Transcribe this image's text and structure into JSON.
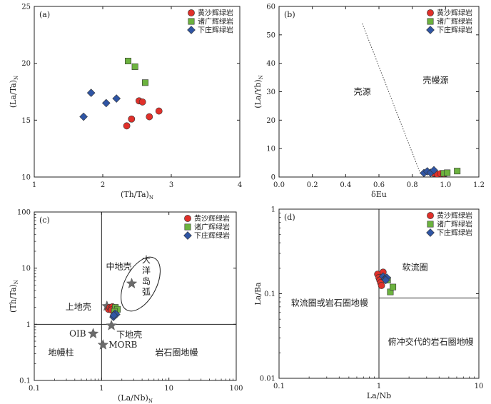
{
  "chart_data": [
    {
      "id": "a",
      "type": "scatter",
      "panel_label": "(a)",
      "xlabel": "(Th/Ta)N",
      "ylabel": "(La/Ta)N",
      "xlim": [
        1,
        4
      ],
      "ylim": [
        10,
        25
      ],
      "xticks": [
        1,
        2,
        3,
        4
      ],
      "yticks": [
        10,
        15,
        20,
        25
      ],
      "legend": "top-right",
      "series": [
        {
          "name": "黄沙辉绿岩",
          "marker": "circle",
          "color": "#e0302a",
          "points": [
            [
              2.35,
              14.5
            ],
            [
              2.42,
              15.1
            ],
            [
              2.53,
              16.7
            ],
            [
              2.58,
              16.6
            ],
            [
              2.68,
              15.3
            ],
            [
              2.82,
              15.8
            ]
          ]
        },
        {
          "name": "诸广辉绿岩",
          "marker": "square",
          "color": "#6cb33f",
          "points": [
            [
              2.37,
              20.2
            ],
            [
              2.47,
              19.7
            ],
            [
              2.62,
              18.3
            ]
          ]
        },
        {
          "name": "下庄辉绿岩",
          "marker": "diamond",
          "color": "#2f55a4",
          "points": [
            [
              1.72,
              15.3
            ],
            [
              1.83,
              17.4
            ],
            [
              2.05,
              16.5
            ],
            [
              2.2,
              16.9
            ]
          ]
        }
      ]
    },
    {
      "id": "b",
      "type": "scatter",
      "panel_label": "(b)",
      "xlabel": "δEu",
      "ylabel": "(La/Yb)N",
      "xlim": [
        0,
        1.2
      ],
      "ylim": [
        0,
        60
      ],
      "xticks": [
        0,
        0.2,
        0.4,
        0.6,
        0.8,
        1.0,
        1.2
      ],
      "xtick_labels": [
        "0.0",
        "0.2",
        "0.4",
        "0.6",
        "0.8",
        "1.0",
        "1.2"
      ],
      "yticks": [
        0,
        10,
        20,
        30,
        40,
        50,
        60
      ],
      "legend": "top-right",
      "boundary_line": {
        "style": "dotted",
        "points": [
          [
            0.5,
            54
          ],
          [
            0.85,
            1
          ]
        ]
      },
      "region_labels": [
        {
          "text": "壳源",
          "x": 0.5,
          "y": 29
        },
        {
          "text": "壳幔源",
          "x": 0.94,
          "y": 33
        }
      ],
      "series": [
        {
          "name": "黄沙辉绿岩",
          "marker": "circle",
          "color": "#e0302a",
          "points": [
            [
              0.93,
              1.3
            ],
            [
              0.95,
              1.0
            ],
            [
              0.97,
              1.2
            ],
            [
              0.99,
              1.1
            ]
          ]
        },
        {
          "name": "诸广辉绿岩",
          "marker": "square",
          "color": "#6cb33f",
          "points": [
            [
              0.99,
              1.3
            ],
            [
              1.01,
              1.5
            ],
            [
              1.07,
              2.1
            ]
          ]
        },
        {
          "name": "下庄辉绿岩",
          "marker": "diamond",
          "color": "#2f55a4",
          "points": [
            [
              0.87,
              1.4
            ],
            [
              0.89,
              2.0
            ],
            [
              0.91,
              1.5
            ],
            [
              0.93,
              2.4
            ]
          ]
        }
      ]
    },
    {
      "id": "c",
      "type": "scatter",
      "panel_label": "(c)",
      "xlabel": "(La/Nb)N",
      "ylabel": "(Th/Ta)N",
      "xscale": "log",
      "yscale": "log",
      "xlim": [
        0.1,
        100
      ],
      "ylim": [
        0.1,
        100
      ],
      "xticks": [
        0.1,
        1,
        10,
        100
      ],
      "xtick_labels": [
        "0.1",
        "1",
        "10",
        "100"
      ],
      "yticks": [
        0.1,
        1,
        10,
        100
      ],
      "ytick_labels": [
        "0.1",
        "1",
        "10",
        "100"
      ],
      "legend": "top-right",
      "reference_lines": {
        "x": 1,
        "y": 1
      },
      "reference_points": [
        {
          "name": "中地壳",
          "x": 2.8,
          "y": 5.3
        },
        {
          "name": "上地壳",
          "x": 1.2,
          "y": 2.1
        },
        {
          "name": "下地壳",
          "x": 1.4,
          "y": 0.95
        },
        {
          "name": "OIB",
          "x": 0.75,
          "y": 0.68
        },
        {
          "name": "MORB",
          "x": 1.05,
          "y": 0.43
        }
      ],
      "arc_field": {
        "label": "大洋岛弧",
        "center": [
          3.8,
          5.2
        ],
        "span_x": [
          1.8,
          8.0
        ],
        "span_y": [
          1.6,
          17
        ]
      },
      "region_labels": [
        {
          "text": "地幔柱",
          "x": 0.25,
          "y": 0.28
        },
        {
          "text": "岩石圈地幔",
          "x": 13,
          "y": 0.28
        }
      ],
      "series": [
        {
          "name": "黄沙辉绿岩",
          "marker": "circle",
          "color": "#e0302a",
          "points": [
            [
              1.27,
              1.85
            ],
            [
              1.32,
              2.0
            ],
            [
              1.38,
              1.92
            ],
            [
              1.45,
              2.05
            ],
            [
              1.4,
              1.8
            ]
          ]
        },
        {
          "name": "诸广辉绿岩",
          "marker": "square",
          "color": "#6cb33f",
          "points": [
            [
              1.6,
              2.0
            ],
            [
              1.72,
              1.85
            ],
            [
              1.55,
              1.7
            ]
          ]
        },
        {
          "name": "下庄辉绿岩",
          "marker": "diamond",
          "color": "#2f55a4",
          "points": [
            [
              1.5,
              1.35
            ],
            [
              1.58,
              1.55
            ],
            [
              1.65,
              1.5
            ],
            [
              1.52,
              1.45
            ]
          ]
        }
      ]
    },
    {
      "id": "d",
      "type": "scatter",
      "panel_label": "(d)",
      "xlabel": "La/Nb",
      "ylabel": "La/Ba",
      "xscale": "log",
      "yscale": "log",
      "xlim": [
        0.1,
        10
      ],
      "ylim": [
        0.01,
        1
      ],
      "xticks": [
        0.1,
        1,
        10
      ],
      "xtick_labels": [
        "0.1",
        "1",
        "10"
      ],
      "yticks": [
        0.01,
        0.1,
        1
      ],
      "ytick_labels": [
        "0.01",
        "0.1",
        "1"
      ],
      "legend": "top-right",
      "reference_lines": {
        "x": 1,
        "y_right": 0.089
      },
      "region_labels": [
        {
          "text": "软流圈",
          "x": 2.3,
          "y": 0.19
        },
        {
          "text": "软流圈或岩石圈地幔",
          "x": 0.32,
          "y": 0.072
        },
        {
          "text": "俯冲交代的岩石圈地幔",
          "x": 3.3,
          "y": 0.025
        }
      ],
      "series": [
        {
          "name": "黄沙辉绿岩",
          "marker": "circle",
          "color": "#e0302a",
          "points": [
            [
              0.97,
              0.17
            ],
            [
              1.0,
              0.155
            ],
            [
              1.02,
              0.145
            ],
            [
              1.04,
              0.135
            ],
            [
              1.06,
              0.125
            ],
            [
              1.1,
              0.18
            ]
          ]
        },
        {
          "name": "诸广辉绿岩",
          "marker": "square",
          "color": "#6cb33f",
          "points": [
            [
              1.22,
              0.145
            ],
            [
              1.3,
              0.105
            ],
            [
              1.38,
              0.12
            ]
          ]
        },
        {
          "name": "下庄辉绿岩",
          "marker": "diamond",
          "color": "#2f55a4",
          "points": [
            [
              1.1,
              0.16
            ],
            [
              1.15,
              0.15
            ],
            [
              1.2,
              0.155
            ],
            [
              1.17,
              0.145
            ]
          ]
        }
      ]
    }
  ]
}
